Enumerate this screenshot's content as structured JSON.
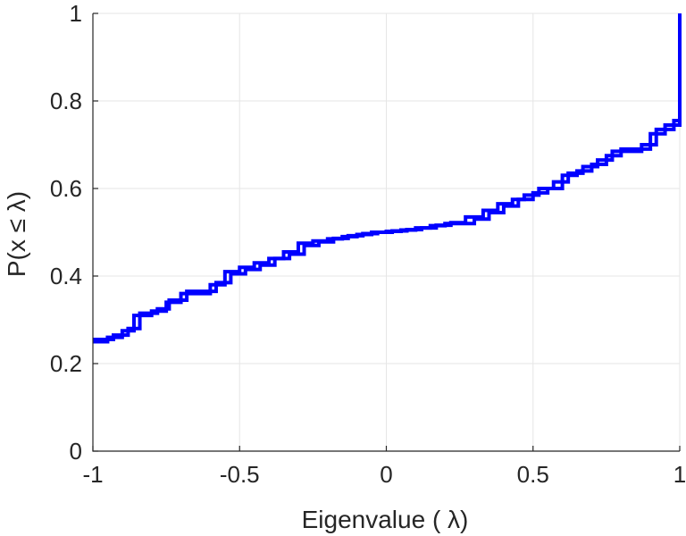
{
  "chart_data": {
    "type": "line",
    "subtype": "stairs",
    "title": "",
    "xlabel": "Eigenvalue (   λ)",
    "ylabel": "P(x ≤ λ)",
    "xlim": [
      -1,
      1
    ],
    "ylim": [
      0,
      1
    ],
    "x_ticks": [
      -1,
      -0.5,
      0,
      0.5,
      1
    ],
    "x_tick_labels": [
      "-1",
      "-0.5",
      "0",
      "0.5",
      "1"
    ],
    "y_ticks": [
      0,
      0.2,
      0.4,
      0.6,
      0.8,
      1
    ],
    "y_tick_labels": [
      "0",
      "0.2",
      "0.4",
      "0.6",
      "0.8",
      "1"
    ],
    "grid": true,
    "legend": "none",
    "series": [
      {
        "color": "#0000ff",
        "x": [
          -1,
          -0.95,
          -0.9,
          -0.86,
          -0.8,
          -0.75,
          -0.7,
          -0.6,
          -0.55,
          -0.5,
          -0.45,
          -0.4,
          -0.35,
          -0.3,
          -0.25,
          -0.2,
          -0.15,
          -0.1,
          -0.05,
          0,
          0.05,
          0.1,
          0.15,
          0.2,
          0.3,
          0.35,
          0.4,
          0.45,
          0.5,
          0.55,
          0.6,
          0.65,
          0.7,
          0.75,
          0.8,
          0.9,
          0.95,
          1
        ],
        "y": [
          0.25,
          0.26,
          0.275,
          0.31,
          0.32,
          0.34,
          0.36,
          0.38,
          0.41,
          0.42,
          0.43,
          0.44,
          0.455,
          0.475,
          0.48,
          0.485,
          0.49,
          0.495,
          0.5,
          0.502,
          0.505,
          0.51,
          0.515,
          0.52,
          0.53,
          0.545,
          0.56,
          0.575,
          0.59,
          0.6,
          0.63,
          0.64,
          0.655,
          0.675,
          0.69,
          0.725,
          0.745,
          1.0
        ]
      },
      {
        "color": "#0000ff",
        "x": [
          -1,
          -0.93,
          -0.88,
          -0.84,
          -0.78,
          -0.74,
          -0.68,
          -0.58,
          -0.53,
          -0.48,
          -0.43,
          -0.38,
          -0.33,
          -0.28,
          -0.23,
          -0.18,
          -0.13,
          -0.08,
          -0.03,
          0.02,
          0.07,
          0.12,
          0.17,
          0.22,
          0.27,
          0.33,
          0.38,
          0.43,
          0.47,
          0.52,
          0.57,
          0.62,
          0.67,
          0.72,
          0.77,
          0.87,
          0.92,
          0.98,
          1
        ],
        "y": [
          0.255,
          0.265,
          0.28,
          0.315,
          0.325,
          0.345,
          0.365,
          0.385,
          0.405,
          0.415,
          0.425,
          0.44,
          0.45,
          0.47,
          0.478,
          0.486,
          0.492,
          0.497,
          0.5,
          0.503,
          0.506,
          0.51,
          0.516,
          0.522,
          0.535,
          0.55,
          0.565,
          0.575,
          0.585,
          0.6,
          0.615,
          0.635,
          0.65,
          0.665,
          0.685,
          0.7,
          0.735,
          0.755,
          0.755
        ]
      }
    ]
  }
}
